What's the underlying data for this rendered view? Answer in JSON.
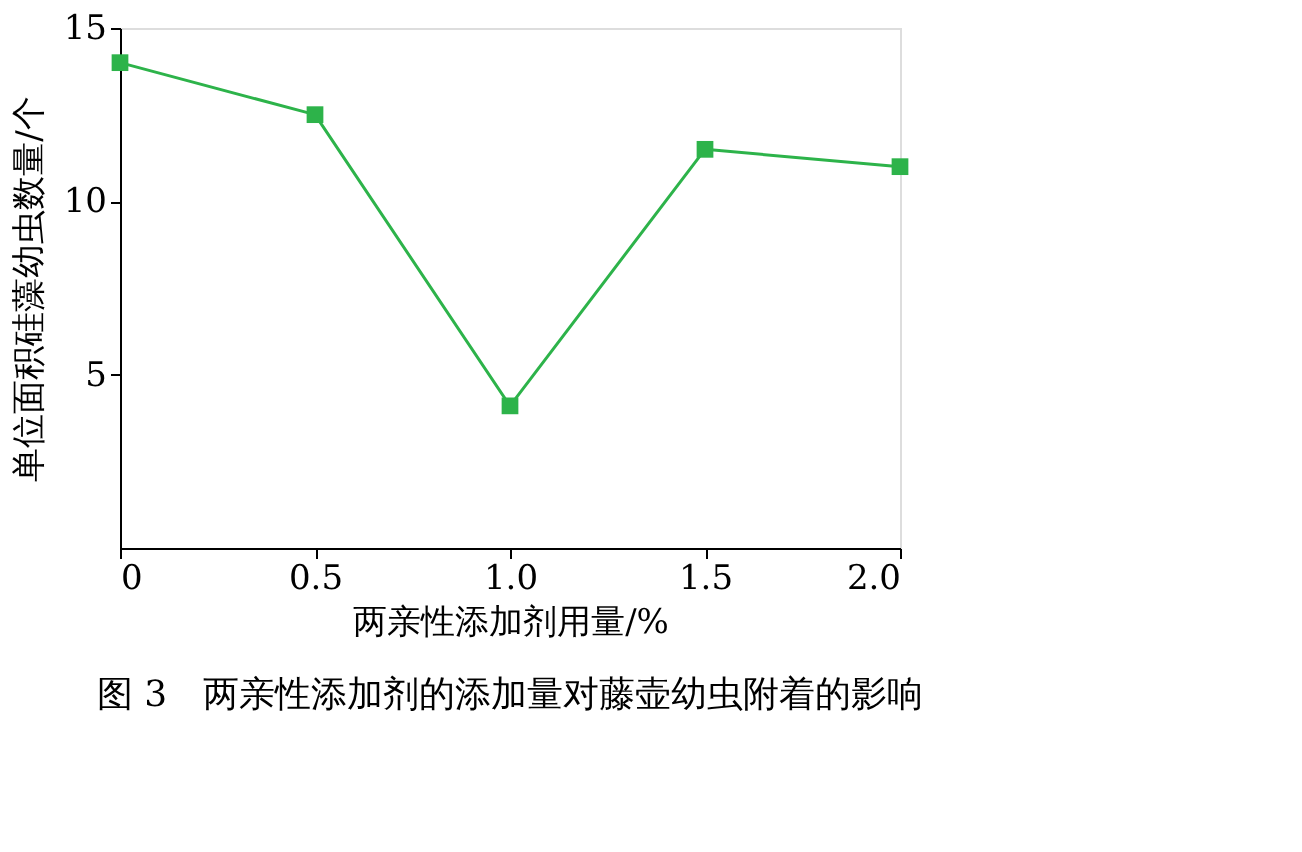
{
  "chart_data": {
    "type": "line",
    "title": "图 3　两亲性添加剂的添加量对藤壶幼虫附着的影响",
    "xlabel": "两亲性添加剂用量/%",
    "ylabel": "单位面积硅藻幼虫数量/个",
    "x": [
      0,
      0.5,
      1.0,
      1.5,
      2.0
    ],
    "series": [
      {
        "color": "#2db34a",
        "values": [
          14.0,
          12.5,
          4.1,
          11.5,
          11.0
        ]
      }
    ],
    "xlim": [
      0,
      2.0
    ],
    "xticks": [
      {
        "value": 0,
        "label": "0"
      },
      {
        "value": 0.5,
        "label": "0.5"
      },
      {
        "value": 1.0,
        "label": "1.0"
      },
      {
        "value": 1.5,
        "label": "1.5"
      },
      {
        "value": 2.0,
        "label": "2.0"
      }
    ],
    "ylim": [
      0,
      15
    ],
    "yticks": [
      5,
      10,
      15
    ],
    "marker": "square",
    "grid": false
  }
}
